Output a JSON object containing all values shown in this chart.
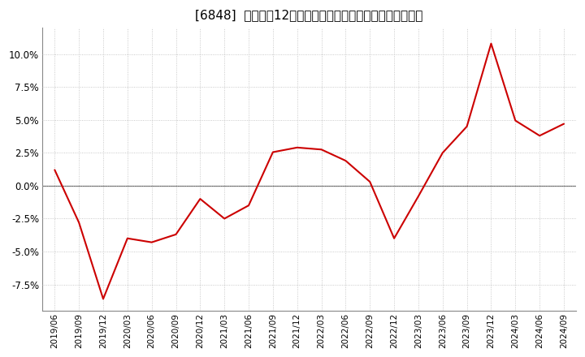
{
  "title": "[6848]  売上高の12か月移動合計の対前年同期増減率の推移",
  "dates": [
    "2019/06",
    "2019/09",
    "2019/12",
    "2020/03",
    "2020/06",
    "2020/09",
    "2020/12",
    "2021/03",
    "2021/06",
    "2021/09",
    "2021/12",
    "2022/03",
    "2022/06",
    "2022/09",
    "2022/12",
    "2023/03",
    "2023/06",
    "2023/09",
    "2023/12",
    "2024/03",
    "2024/06",
    "2024/09"
  ],
  "values": [
    1.2,
    -2.8,
    -8.6,
    -4.0,
    -4.3,
    -3.7,
    -1.0,
    -2.5,
    -1.5,
    2.55,
    2.9,
    2.75,
    1.9,
    0.3,
    -4.0,
    -0.8,
    2.5,
    4.5,
    10.8,
    4.95,
    3.8,
    4.7
  ],
  "line_color": "#cc0000",
  "background_color": "#ffffff",
  "plot_bg_color": "#ffffff",
  "grid_color": "#bbbbbb",
  "zero_line_color": "#666666",
  "yticks": [
    -7.5,
    -5.0,
    -2.5,
    0.0,
    2.5,
    5.0,
    7.5,
    10.0
  ],
  "ylim": [
    -9.5,
    12.0
  ],
  "title_fontsize": 11
}
